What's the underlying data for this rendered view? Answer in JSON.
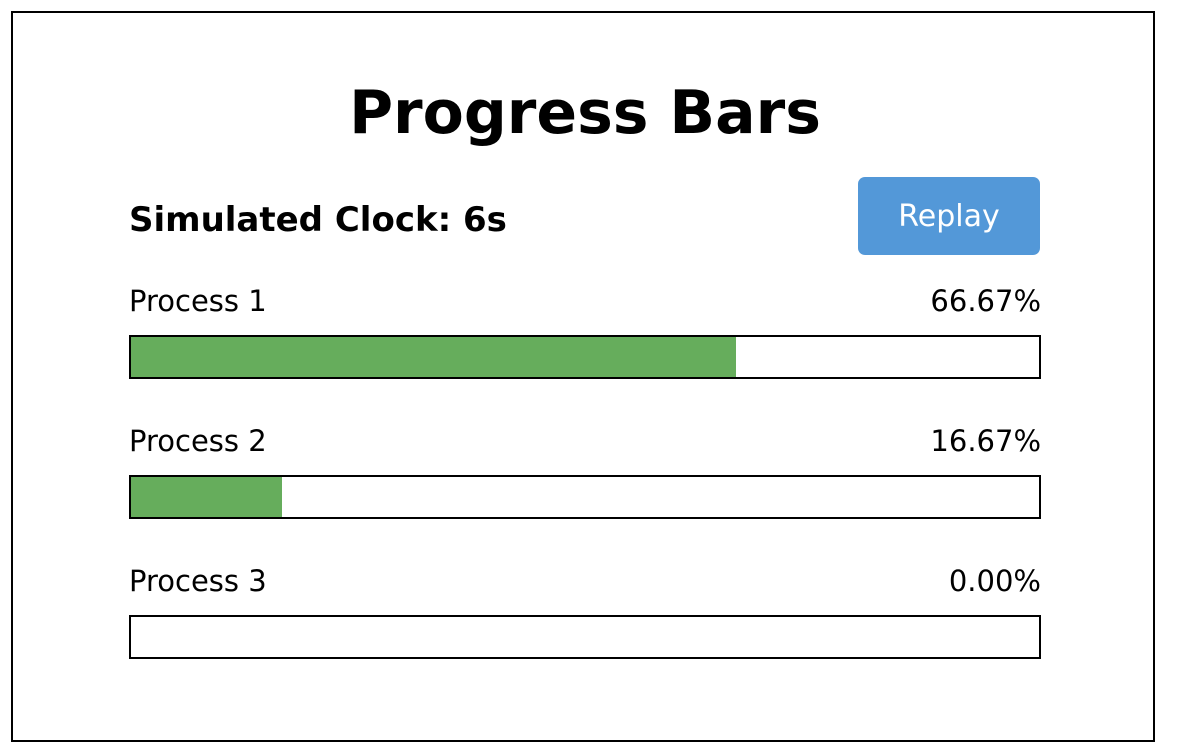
{
  "title": "Progress Bars",
  "clock": {
    "text": "Simulated Clock: 6s"
  },
  "replay_button": {
    "label": "Replay"
  },
  "colors": {
    "button": "#5398d8",
    "bar_fill": "#66ad5c"
  },
  "processes": [
    {
      "label": "Process 1",
      "percent_text": "66.67%",
      "progress": 0.6667
    },
    {
      "label": "Process 2",
      "percent_text": "16.67%",
      "progress": 0.1667
    },
    {
      "label": "Process 3",
      "percent_text": "0.00%",
      "progress": 0.0
    }
  ]
}
